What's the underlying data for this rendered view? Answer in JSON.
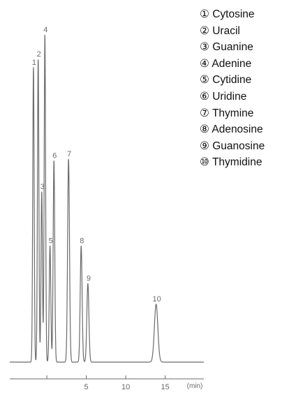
{
  "chart_data": {
    "type": "line",
    "title": "",
    "xlabel": "",
    "ylabel": "",
    "x_unit": "(min)",
    "xlim": [
      -4.7,
      19.9
    ],
    "ylim": [
      0,
      1.0
    ],
    "x_ticks": [
      0,
      5,
      10,
      15
    ],
    "x_tick_labels": [
      "",
      "5",
      "10",
      "15"
    ],
    "grid": false,
    "legend_placement": "top-right",
    "line_color": "#6b6b6b",
    "peaks": [
      {
        "label": "1",
        "retention_time": -1.7,
        "height": 0.9,
        "width": 0.09
      },
      {
        "label": "2",
        "retention_time": -1.1,
        "height": 0.925,
        "width": 0.09
      },
      {
        "label": "3",
        "retention_time": -0.65,
        "height": 0.52,
        "width": 0.09
      },
      {
        "label": "4",
        "retention_time": -0.25,
        "height": 1.0,
        "width": 0.09
      },
      {
        "label": "5",
        "retention_time": 0.4,
        "height": 0.355,
        "width": 0.1
      },
      {
        "label": "6",
        "retention_time": 0.9,
        "height": 0.615,
        "width": 0.1
      },
      {
        "label": "7",
        "retention_time": 2.75,
        "height": 0.62,
        "width": 0.12
      },
      {
        "label": "8",
        "retention_time": 4.35,
        "height": 0.355,
        "width": 0.12
      },
      {
        "label": "9",
        "retention_time": 5.2,
        "height": 0.24,
        "width": 0.13
      },
      {
        "label": "10",
        "retention_time": 13.85,
        "height": 0.177,
        "width": 0.22
      }
    ]
  },
  "legend": {
    "items": [
      {
        "marker": "①",
        "name": "Cytosine"
      },
      {
        "marker": "②",
        "name": "Uracil"
      },
      {
        "marker": "③",
        "name": "Guanine"
      },
      {
        "marker": "④",
        "name": "Adenine"
      },
      {
        "marker": "⑤",
        "name": "Cytidine"
      },
      {
        "marker": "⑥",
        "name": "Uridine"
      },
      {
        "marker": "⑦",
        "name": "Thymine"
      },
      {
        "marker": "⑧",
        "name": "Adenosine"
      },
      {
        "marker": "⑨",
        "name": "Guanosine"
      },
      {
        "marker": "⑩",
        "name": "Thymidine"
      }
    ]
  }
}
